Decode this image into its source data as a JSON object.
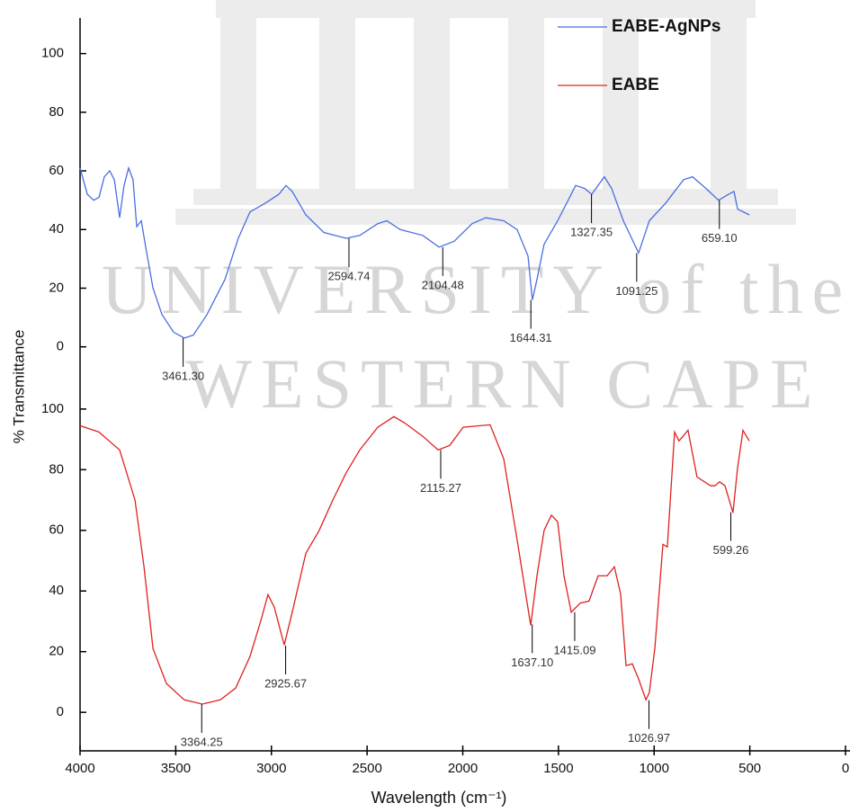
{
  "chart_data": {
    "type": "line",
    "xlabel": "Wavelength (cm⁻¹)",
    "ylabel": "% Transmittance",
    "xlim": [
      4000,
      0
    ],
    "xticks": [
      4000,
      3500,
      3000,
      2500,
      2000,
      1500,
      1000,
      500,
      0
    ],
    "legend": "top-right",
    "watermark": [
      "UNIVERSITY of the",
      "WESTERN CAPE"
    ],
    "panels": [
      {
        "ylim": [
          -5,
          110
        ],
        "yticks": [
          0,
          20,
          40,
          60,
          80,
          100
        ],
        "series": [
          {
            "name": "EABE-AgNPs",
            "color": "#4a6ee0",
            "x": [
              4000,
              3962,
              3929,
              3901,
              3873,
              3845,
              3821,
              3793,
              3770,
              3746,
              3723,
              3704,
              3680,
              3657,
              3619,
              3572,
              3511,
              3455,
              3408,
              3337,
              3243,
              3173,
              3112,
              3032,
              2961,
              2924,
              2891,
              2820,
              2726,
              2609,
              2538,
              2444,
              2397,
              2327,
              2209,
              2124,
              2045,
              1951,
              1880,
              1786,
              1716,
              1659,
              1636,
              1612,
              1575,
              1504,
              1410,
              1363,
              1326,
              1293,
              1260,
              1222,
              1161,
              1081,
              1025,
              940,
              846,
              799,
              729,
              663,
              611,
              583,
              564,
              503
            ],
            "values": [
              61,
              52,
              50,
              51,
              58,
              60,
              57,
              44,
              55,
              61,
              57,
              41,
              43,
              34,
              20,
              11,
              5,
              3,
              4,
              11,
              23,
              37,
              46,
              49,
              52,
              55,
              53,
              45,
              39,
              37,
              38,
              42,
              43,
              40,
              38,
              34,
              36,
              42,
              44,
              43,
              40,
              31,
              16,
              23,
              35,
              43,
              55,
              54,
              52,
              55,
              58,
              54,
              43,
              32,
              43,
              49,
              57,
              58,
              54,
              50,
              52,
              53,
              47,
              45
            ]
          }
        ],
        "annotations": [
          {
            "x": 3461.3,
            "y": 3,
            "label": "3461.30"
          },
          {
            "x": 2594.74,
            "y": 37,
            "label": "2594.74"
          },
          {
            "x": 2104.48,
            "y": 34,
            "label": "2104.48"
          },
          {
            "x": 1644.31,
            "y": 16,
            "label": "1644.31"
          },
          {
            "x": 1327.35,
            "y": 52,
            "label": "1327.35"
          },
          {
            "x": 1091.25,
            "y": 32,
            "label": "1091.25"
          },
          {
            "x": 659.1,
            "y": 50,
            "label": "659.10"
          }
        ]
      },
      {
        "ylim": [
          -13,
          105
        ],
        "yticks": [
          0,
          20,
          40,
          60,
          80,
          100
        ],
        "series": [
          {
            "name": "EABE",
            "color": "#e02020",
            "x": [
              4000,
              3901,
              3793,
              3713,
              3666,
              3619,
              3549,
              3455,
              3361,
              3267,
              3187,
              3112,
              3056,
              3018,
              2985,
              2933,
              2891,
              2820,
              2750,
              2679,
              2609,
              2538,
              2444,
              2360,
              2303,
              2209,
              2129,
              2068,
              1998,
              1857,
              1786,
              1716,
              1645,
              1612,
              1575,
              1537,
              1504,
              1471,
              1433,
              1386,
              1340,
              1293,
              1246,
              1208,
              1175,
              1147,
              1114,
              1081,
              1043,
              1025,
              996,
              954,
              931,
              893,
              870,
              823,
              776,
              705,
              682,
              658,
              630,
              588,
              564,
              536,
              503
            ],
            "values": [
              94.5,
              92.4,
              86.5,
              70,
              48,
              21,
              9.5,
              4.1,
              2.7,
              4.1,
              8,
              18.4,
              30,
              38.8,
              34.7,
              22.2,
              33,
              52.4,
              60,
              70,
              79,
              86.5,
              94,
              97.5,
              95.4,
              91,
              86.5,
              88,
              94,
              94.8,
              83.6,
              56.9,
              28.7,
              45,
              60,
              65,
              62.8,
              45,
              33,
              36,
              36.7,
              45,
              45,
              48,
              39,
              15.4,
              16,
              11,
              4.1,
              6.5,
              21.3,
              55.4,
              54.5,
              92.4,
              89.5,
              93,
              77.6,
              74.7,
              74.7,
              76,
              74.7,
              65.8,
              80.6,
              93,
              89.5
            ]
          }
        ],
        "annotations": [
          {
            "x": 3364.25,
            "y": 2.7,
            "label": "3364.25"
          },
          {
            "x": 2925.67,
            "y": 22,
            "label": "2925.67"
          },
          {
            "x": 2115.27,
            "y": 86.5,
            "label": "2115.27"
          },
          {
            "x": 1637.1,
            "y": 29,
            "label": "1637.10"
          },
          {
            "x": 1415.09,
            "y": 33,
            "label": "1415.09"
          },
          {
            "x": 1026.97,
            "y": 4,
            "label": "1026.97"
          },
          {
            "x": 599.26,
            "y": 66,
            "label": "599.26"
          }
        ]
      }
    ]
  }
}
